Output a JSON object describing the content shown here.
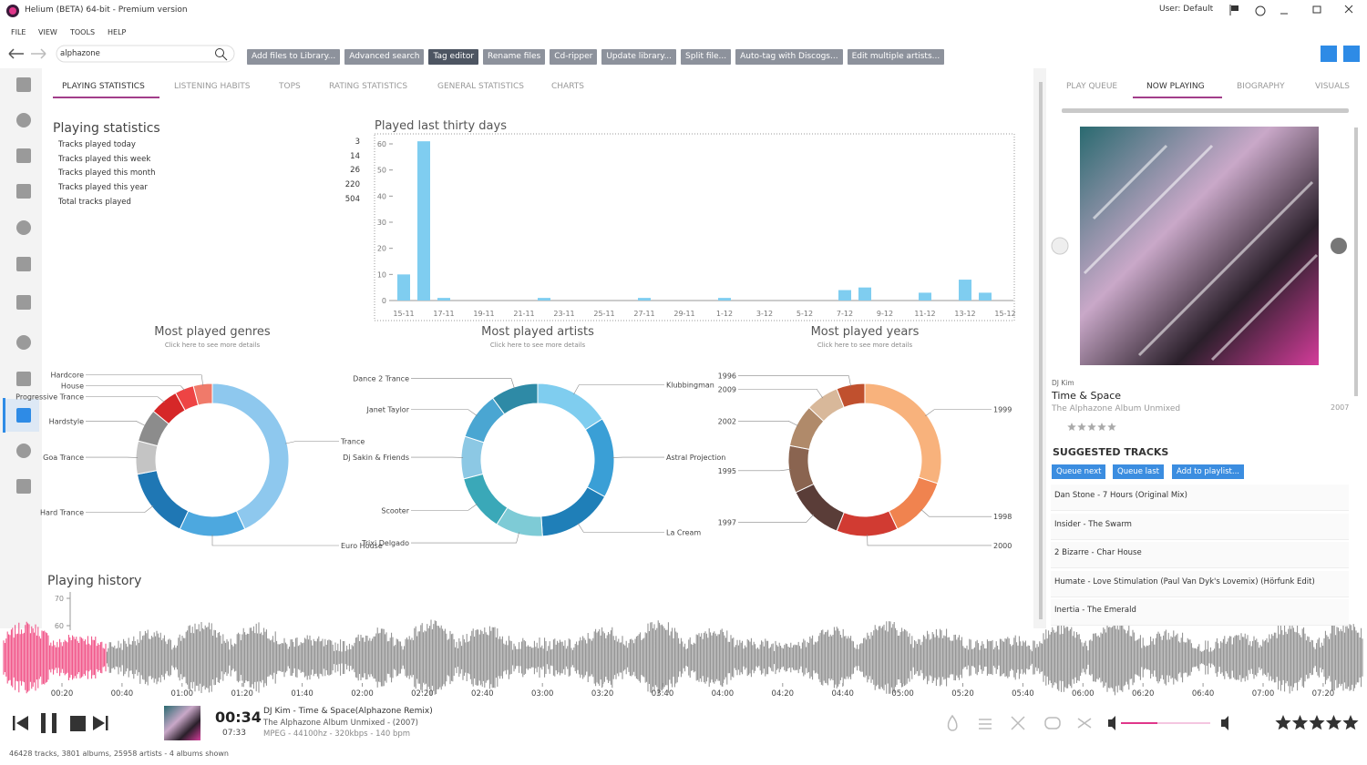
{
  "window": {
    "title": "Helium (BETA) 64-bit - Premium version",
    "user": "User: Default"
  },
  "menu": [
    "FILE",
    "VIEW",
    "TOOLS",
    "HELP"
  ],
  "search": "alphazone",
  "toolbar": [
    "Add files to Library...",
    "Advanced search",
    "Tag editor",
    "Rename files",
    "Cd-ripper",
    "Update library...",
    "Split file...",
    "Auto-tag with Discogs...",
    "Edit multiple artists..."
  ],
  "tabs": [
    "PLAYING STATISTICS",
    "LISTENING HABITS",
    "TOPS",
    "RATING STATISTICS",
    "GENERAL STATISTICS",
    "CHARTS"
  ],
  "stats": {
    "title": "Playing statistics",
    "rows": [
      {
        "label": "Tracks played today",
        "value": 3
      },
      {
        "label": "Tracks played this week",
        "value": 14
      },
      {
        "label": "Tracks played this month",
        "value": 26
      },
      {
        "label": "Tracks played this year",
        "value": 220
      },
      {
        "label": "Total tracks played",
        "value": 504
      }
    ]
  },
  "daily": {
    "type": "bar",
    "title": "Played last thirty days",
    "categories": [
      "15-11",
      null,
      "17-11",
      null,
      "19-11",
      null,
      "21-11",
      null,
      "23-11",
      null,
      "25-11",
      null,
      "27-11",
      null,
      "29-11",
      null,
      "1-12",
      null,
      "3-12",
      null,
      "5-12",
      null,
      "7-12",
      null,
      "9-12",
      null,
      "11-12",
      null,
      "13-12",
      null,
      "15-12"
    ],
    "values": [
      10,
      61,
      1,
      0,
      0,
      0,
      0,
      1,
      0,
      0,
      0,
      0,
      1,
      0,
      0,
      0,
      1,
      0,
      0,
      0,
      0,
      0,
      4,
      5,
      0,
      0,
      3,
      0,
      8,
      3,
      0
    ],
    "color": "#7fcdf0",
    "ylim": [
      0,
      60
    ],
    "yticks": [
      0,
      10,
      20,
      30,
      40,
      50,
      60
    ]
  },
  "genres": {
    "type": "pie",
    "title": "Most played genres",
    "subtitle": "Click here to see more details",
    "categories": [
      "Trance",
      "Euro House",
      "Hard Trance",
      "Goa Trance",
      "Hardstyle",
      "Progressive Trance",
      "House",
      "Hardcore"
    ],
    "values": [
      43,
      14,
      15,
      7,
      7,
      6,
      4,
      4
    ],
    "colors": [
      "#8ec8ee",
      "#4da8df",
      "#1f77b4",
      "#c4c4c4",
      "#8c8c8c",
      "#d62728",
      "#ee4444",
      "#f07a6a"
    ]
  },
  "artists": {
    "type": "pie",
    "title": "Most played artists",
    "subtitle": "Click here to see more details",
    "categories": [
      "Klubbingman",
      "Astral Projection",
      "La Cream",
      "Trixi Delgado",
      "Scooter",
      "Dj Sakin & Friends",
      "Janet Taylor",
      "Dance 2 Trance"
    ],
    "values": [
      16,
      17,
      16,
      10,
      12,
      9,
      10,
      10
    ],
    "colors": [
      "#7fcdef",
      "#3a9fd6",
      "#1f7fb8",
      "#7ecbd6",
      "#3aa8b8",
      "#8cc8e4",
      "#4aa6d2",
      "#2e8aa6"
    ]
  },
  "years": {
    "type": "pie",
    "title": "Most played years",
    "subtitle": "Click here to see more details",
    "categories": [
      "1999",
      "1998",
      "2000",
      "1997",
      "1995",
      "2002",
      "2009",
      "1996"
    ],
    "values": [
      30,
      13,
      13,
      12,
      10,
      9,
      7,
      6
    ],
    "colors": [
      "#f8b27c",
      "#f0834f",
      "#d13b32",
      "#5a3d38",
      "#8a6450",
      "#b08a6a",
      "#d8b89a",
      "#c0502e"
    ]
  },
  "history": {
    "title": "Playing history",
    "ylim": [
      60,
      70
    ],
    "yticks": [
      60,
      70
    ]
  },
  "now_playing": {
    "tabs": [
      "PLAY QUEUE",
      "NOW PLAYING",
      "BIOGRAPHY",
      "VISUALS"
    ],
    "artist": "DJ Kim",
    "title": "Time & Space",
    "album": "The Alphazone Album Unmixed",
    "year": "2007",
    "suggested_title": "SUGGESTED TRACKS",
    "buttons": [
      "Queue next",
      "Queue last",
      "Add to playlist..."
    ],
    "tracks": [
      "Dan Stone -  7 Hours (Original Mix)",
      "Insider -  The Swarm",
      "2 Bizarre -  Char House",
      "Humate -  Love Stimulation (Paul Van Dyk's Lovemix) (Hörfunk Edit)",
      "Inertia -  The Emerald"
    ]
  },
  "timeline": [
    "00:20",
    "00:40",
    "01:00",
    "01:20",
    "01:40",
    "02:00",
    "02:20",
    "02:40",
    "03:00",
    "03:20",
    "03:40",
    "04:00",
    "04:20",
    "04:40",
    "05:00",
    "05:20",
    "05:40",
    "06:00",
    "06:20",
    "06:40",
    "07:00",
    "07:20"
  ],
  "player": {
    "elapsed": "00:34",
    "duration": "07:33",
    "track": "DJ Kim - Time & Space(Alphazone Remix)",
    "album": "The Alphazone Album Unmixed - (2007)",
    "format": "MPEG - 44100hz - 320kbps - 140 bpm"
  },
  "status": "46428 tracks, 3801 albums, 25958 artists - 4 albums shown"
}
